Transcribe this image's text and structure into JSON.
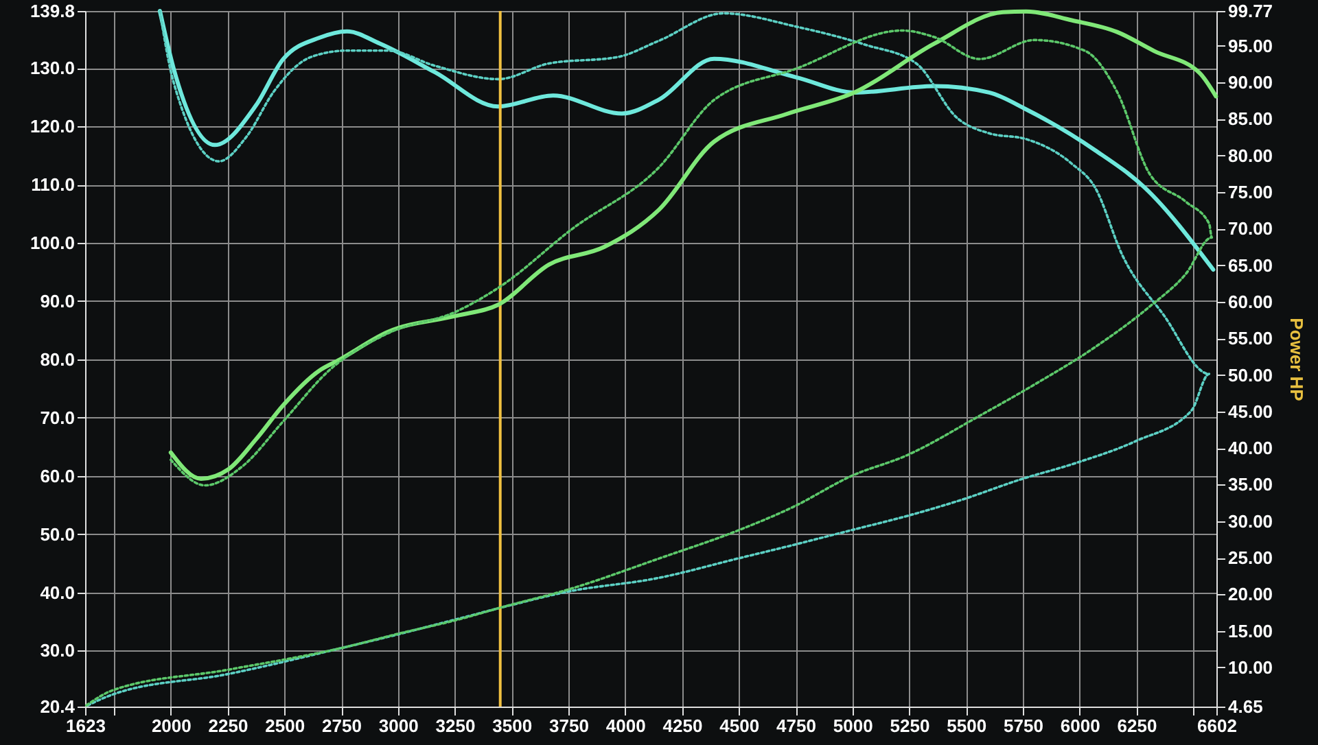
{
  "chart_data": {
    "type": "line",
    "y2label": "Power HP",
    "xlim": [
      1623,
      6602
    ],
    "ylim": [
      20.4,
      139.8
    ],
    "y2lim": [
      4.65,
      99.77
    ],
    "xticks": [
      1623,
      {
        "value": 1750,
        "label": null
      },
      2000,
      2250,
      2500,
      2750,
      3000,
      3250,
      3500,
      3750,
      4000,
      4250,
      4500,
      4750,
      5000,
      5250,
      5500,
      5750,
      6000,
      6250,
      {
        "value": 6500,
        "label": null
      },
      6602
    ],
    "yticks": [
      20.4,
      {
        "value": 30,
        "label": "30.0"
      },
      {
        "value": 40,
        "label": "40.0"
      },
      {
        "value": 50,
        "label": "50.0"
      },
      {
        "value": 60,
        "label": "60.0"
      },
      {
        "value": 70,
        "label": "70.0"
      },
      {
        "value": 80,
        "label": "80.0"
      },
      {
        "value": 90,
        "label": "90.0"
      },
      {
        "value": 100,
        "label": "100.0"
      },
      {
        "value": 110,
        "label": "110.0"
      },
      {
        "value": 120,
        "label": "120.0"
      },
      {
        "value": 130,
        "label": "130.0"
      },
      139.8
    ],
    "y2ticks": [
      4.65,
      {
        "value": 10,
        "label": "10.00"
      },
      {
        "value": 15,
        "label": "15.00"
      },
      {
        "value": 20,
        "label": "20.00"
      },
      {
        "value": 25,
        "label": "25.00"
      },
      {
        "value": 30,
        "label": "30.00"
      },
      {
        "value": 35,
        "label": "35.00"
      },
      {
        "value": 40,
        "label": "40.00"
      },
      {
        "value": 45,
        "label": "45.00"
      },
      {
        "value": 50,
        "label": "50.00"
      },
      {
        "value": 55,
        "label": "55.00"
      },
      {
        "value": 60,
        "label": "60.00"
      },
      {
        "value": 65,
        "label": "65.00"
      },
      {
        "value": 70,
        "label": "70.00"
      },
      {
        "value": 75,
        "label": "75.00"
      },
      {
        "value": 80,
        "label": "80.00"
      },
      {
        "value": 85,
        "label": "85.00"
      },
      {
        "value": 90,
        "label": "90.00"
      },
      {
        "value": 95,
        "label": "95.00"
      },
      99.77
    ],
    "grid": true,
    "line_style": "solid",
    "ref_lines": [
      {
        "axis": "x",
        "value": 3450,
        "color": "#f0c040"
      }
    ],
    "series": [
      {
        "color": "#6ee8dc",
        "x": [
          1952,
          2012,
          2194,
          2375,
          2496,
          2654,
          2775,
          2920,
          3162,
          3441,
          3683,
          3985,
          4149,
          4391,
          4754,
          5014,
          5360,
          5602,
          5765,
          6068,
          6286,
          6588
        ],
        "values": [
          139.8,
          130,
          116.8,
          123.6,
          131.6,
          135.2,
          136.3,
          134.2,
          129.3,
          123.4,
          125.3,
          122.2,
          124.6,
          131.6,
          128.4,
          125.8,
          126.9,
          125.8,
          122.9,
          115.9,
          109.5,
          95.4
        ]
      },
      {
        "color": "#5cd0c4",
        "line_style": "dotted",
        "x": [
          1952,
          2012,
          2212,
          2333,
          2454,
          2617,
          2775,
          2956,
          3162,
          3441,
          3665,
          3967,
          4149,
          4433,
          4754,
          5057,
          5281,
          5462,
          5602,
          5765,
          5965,
          6068,
          6189,
          6370,
          6570,
          6492,
          6249,
          5983,
          5741,
          5481,
          5239,
          4997,
          4736,
          4494,
          4149,
          3743,
          3465,
          3259,
          3000,
          2757,
          2254,
          1746,
          1623
        ],
        "values": [
          139.8,
          127.6,
          114,
          118.2,
          126,
          131.9,
          133,
          133,
          130.4,
          128.1,
          130.8,
          131.9,
          134.7,
          139.4,
          137.1,
          134,
          130.8,
          121.4,
          118.8,
          117.8,
          113.6,
          109.5,
          97.8,
          87.6,
          77.5,
          71.2,
          66,
          62.2,
          59.4,
          55.9,
          53.1,
          50.7,
          48.1,
          45.8,
          42.5,
          40.1,
          37.5,
          35.4,
          32.8,
          30.5,
          26,
          22.5,
          20.4
        ]
      },
      {
        "color": "#80e878",
        "axis": "y2",
        "x": [
          2000,
          2133,
          2254,
          2375,
          2496,
          2654,
          2738,
          2956,
          3259,
          3441,
          3665,
          3907,
          4149,
          4391,
          4712,
          5014,
          5360,
          5662,
          5765,
          5965,
          6165,
          6328,
          6528,
          6600
        ],
        "values": [
          39.4,
          35.8,
          37.1,
          41.2,
          45.9,
          50.6,
          52,
          55.9,
          58.1,
          59.6,
          65.1,
          67.5,
          72.6,
          81.9,
          85.7,
          88.7,
          95.3,
          99.6,
          99.7,
          98.5,
          96.9,
          94.3,
          91.3,
          88.1
        ]
      },
      {
        "color": "#5cc86a",
        "axis": "y2",
        "line_style": "dotted",
        "x": [
          2000,
          2151,
          2315,
          2496,
          2696,
          2956,
          3259,
          3441,
          3768,
          4149,
          4391,
          4754,
          5220,
          5360,
          5559,
          5802,
          6025,
          6165,
          6310,
          6467,
          6570,
          6582,
          6467,
          6310,
          6068,
          5802,
          5559,
          5239,
          4997,
          4736,
          4494,
          4149,
          3743,
          3465,
          3259,
          3000,
          2757,
          2254,
          1746,
          1623
        ],
        "values": [
          38.4,
          34.9,
          37.5,
          43.7,
          50.6,
          55.7,
          58.7,
          61.9,
          70,
          78.4,
          87.6,
          91.9,
          97.1,
          96.2,
          93.2,
          95.8,
          94.3,
          88.7,
          77.4,
          73.7,
          70.7,
          68.8,
          63.8,
          59.4,
          53.8,
          48.7,
          44.4,
          39,
          36.2,
          31.9,
          28.7,
          24.9,
          20.6,
          18.3,
          16.5,
          14.6,
          12.7,
          9.7,
          6.9,
          4.7
        ]
      }
    ]
  }
}
